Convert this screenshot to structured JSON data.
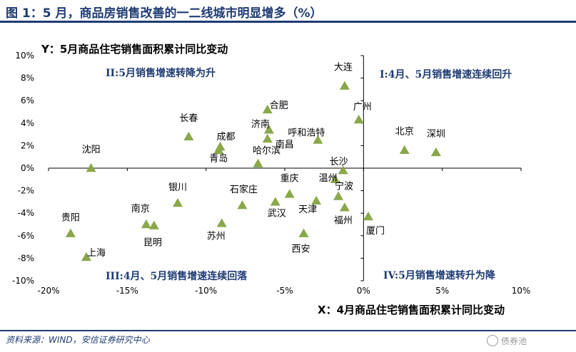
{
  "title": "图 1：5 月，商品房销售改善的一二线城市明显增多（%）",
  "source": "资料来源：WIND，安信证券研究中心",
  "watermark": "债券池",
  "colors": {
    "marker": "#8aa84b",
    "quadrant_text": "#1f3b73",
    "axis": "#000000"
  },
  "chart_data": {
    "type": "scatter",
    "title": "",
    "xlabel": "X：4月商品住宅销售面积累计同比变动",
    "ylabel": "Y：5月商品住宅销售面积累计同比变动",
    "xlim": [
      -20,
      10
    ],
    "ylim": [
      -10,
      10
    ],
    "xticks": [
      -20,
      -15,
      -10,
      -5,
      0,
      5,
      10
    ],
    "yticks": [
      -10,
      -8,
      -6,
      -4,
      -2,
      0,
      2,
      4,
      6,
      8,
      10
    ],
    "xtick_labels": [
      "-20%",
      "-15%",
      "-10%",
      "-5%",
      "0%",
      "5%",
      "10%"
    ],
    "ytick_labels": [
      "-10%",
      "-8%",
      "-6%",
      "-4%",
      "-2%",
      "0%",
      "2%",
      "4%",
      "6%",
      "8%",
      "10%"
    ],
    "quadrant_labels": [
      "II:5月销售增速转降为升",
      "I:4月、5月销售增速连续回升",
      "III:4月、5月销售增速连续回落",
      "IV:5月销售增速转升为降"
    ],
    "points": [
      {
        "name": "大连",
        "x": -1.2,
        "y": 7.3
      },
      {
        "name": "广州",
        "x": -0.3,
        "y": 4.3
      },
      {
        "name": "北京",
        "x": 2.6,
        "y": 1.6
      },
      {
        "name": "深圳",
        "x": 4.6,
        "y": 1.4
      },
      {
        "name": "合肥",
        "x": -6.1,
        "y": 5.2
      },
      {
        "name": "济南",
        "x": -6.0,
        "y": 3.4
      },
      {
        "name": "南昌",
        "x": -6.1,
        "y": 2.6
      },
      {
        "name": "呼和浩特",
        "x": -2.9,
        "y": 2.5
      },
      {
        "name": "长春",
        "x": -11.1,
        "y": 2.8
      },
      {
        "name": "成都",
        "x": -9.1,
        "y": 1.9
      },
      {
        "name": "青岛",
        "x": -9.2,
        "y": 1.6
      },
      {
        "name": "哈尔滨",
        "x": -6.7,
        "y": 0.4
      },
      {
        "name": "长沙",
        "x": -1.3,
        "y": -0.2
      },
      {
        "name": "沈阳",
        "x": -17.3,
        "y": 0.0
      },
      {
        "name": "温州",
        "x": -1.8,
        "y": -1.0
      },
      {
        "name": "宁波",
        "x": -1.6,
        "y": -2.5
      },
      {
        "name": "重庆",
        "x": -4.7,
        "y": -2.3
      },
      {
        "name": "石家庄",
        "x": -7.7,
        "y": -3.3
      },
      {
        "name": "武汉",
        "x": -5.6,
        "y": -3.0
      },
      {
        "name": "天津",
        "x": -3.0,
        "y": -2.9
      },
      {
        "name": "福州",
        "x": -1.2,
        "y": -3.5
      },
      {
        "name": "银川",
        "x": -11.8,
        "y": -3.1
      },
      {
        "name": "苏州",
        "x": -9.0,
        "y": -4.9
      },
      {
        "name": "厦门",
        "x": 0.3,
        "y": -4.3
      },
      {
        "name": "西安",
        "x": -3.8,
        "y": -5.8
      },
      {
        "name": "南京",
        "x": -13.8,
        "y": -5.0
      },
      {
        "name": "昆明",
        "x": -13.3,
        "y": -5.1
      },
      {
        "name": "贵阳",
        "x": -18.6,
        "y": -5.8
      },
      {
        "name": "上海",
        "x": -17.6,
        "y": -7.9
      }
    ]
  }
}
